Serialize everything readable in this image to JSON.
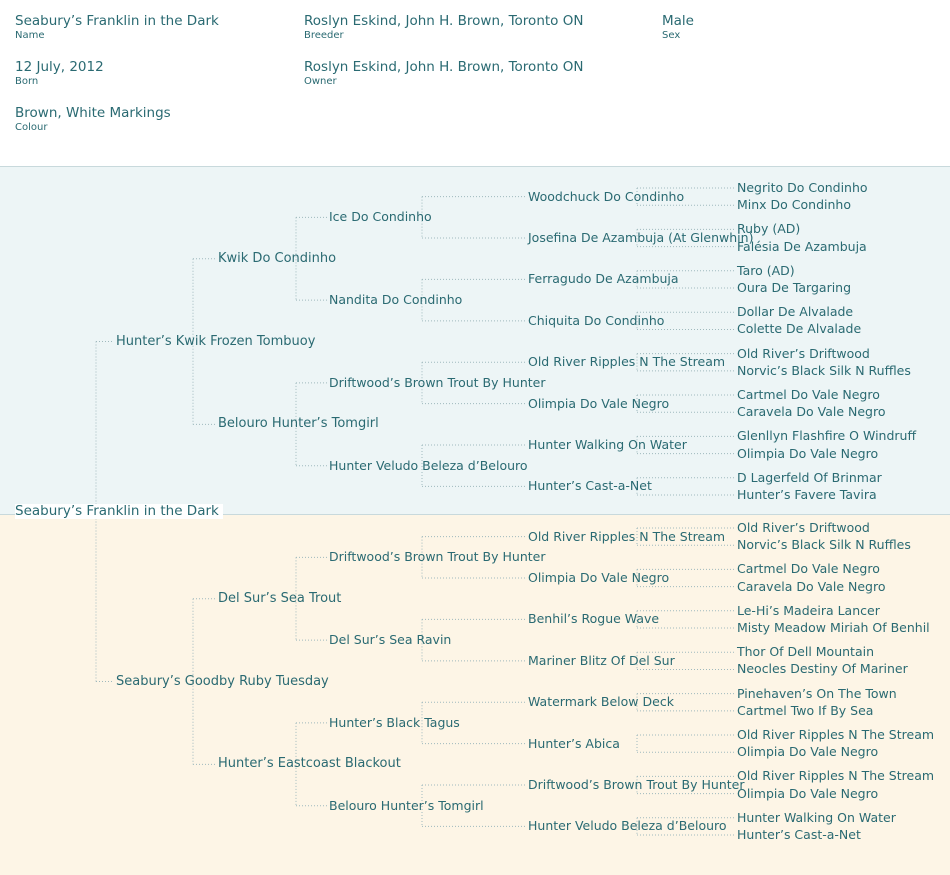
{
  "details": {
    "name": {
      "value": "Seabury’s Franklin in the Dark",
      "label": "Name"
    },
    "breeder": {
      "value": "Roslyn Eskind, John H. Brown, Toronto ON",
      "label": "Breeder"
    },
    "sex": {
      "value": "Male",
      "label": "Sex"
    },
    "born": {
      "value": "12 July, 2012",
      "label": "Born"
    },
    "owner": {
      "value": "Roslyn Eskind, John H. Brown, Toronto ON",
      "label": "Owner"
    },
    "colour": {
      "value": "Brown, White Markings",
      "label": "Colour"
    }
  },
  "colors": {
    "text": "#2a6a72",
    "sire_background": "#edf5f6",
    "dam_background": "#fdf5e6",
    "connector": "#9fb9bd"
  },
  "pedigree": {
    "subject": "Seabury’s Franklin in the Dark",
    "gen1": [
      "Hunter’s Kwik Frozen Tombuoy",
      "Seabury’s Goodby Ruby Tuesday"
    ],
    "gen2": [
      "Kwik Do Condinho",
      "Belouro Hunter’s Tomgirl",
      "Del Sur’s Sea Trout",
      "Hunter’s Eastcoast Blackout"
    ],
    "gen3": [
      "Ice Do Condinho",
      "Nandita Do Condinho",
      "Driftwood’s Brown Trout By Hunter",
      "Hunter Veludo Beleza d’Belouro",
      "Driftwood’s Brown Trout By Hunter",
      "Del Sur’s Sea Ravin",
      "Hunter’s Black Tagus",
      "Belouro Hunter’s Tomgirl"
    ],
    "gen4": [
      "Woodchuck Do Condinho",
      "Josefina De Azambuja (At Glenwhin)",
      "Ferragudo De Azambuja",
      "Chiquita Do Condinho",
      "Old River Ripples N The Stream",
      "Olimpia Do Vale Negro",
      "Hunter Walking On Water",
      "Hunter’s Cast-a-Net",
      "Old River Ripples N The Stream",
      "Olimpia Do Vale Negro",
      "Benhil’s Rogue Wave",
      "Mariner Blitz Of Del Sur",
      "Watermark Below Deck",
      "Hunter’s Abica",
      "Driftwood’s Brown Trout By Hunter",
      "Hunter Veludo Beleza d’Belouro"
    ],
    "gen5": [
      "Negrito Do Condinho",
      "Minx Do Condinho",
      "Ruby (AD)",
      "Falésia De Azambuja",
      "Taro (AD)",
      "Oura De Targaring",
      "Dollar De Alvalade",
      "Colette De Alvalade",
      "Old River’s Driftwood",
      "Norvic’s Black Silk N Ruffles",
      "Cartmel Do Vale Negro",
      "Caravela Do Vale Negro",
      "Glenllyn Flashfire O Windruff",
      "Olimpia Do Vale Negro",
      "D Lagerfeld Of Brinmar",
      "Hunter’s Favere Tavira",
      "Old River’s Driftwood",
      "Norvic’s Black Silk N Ruffles",
      "Cartmel Do Vale Negro",
      "Caravela Do Vale Negro",
      "Le-Hi’s Madeira Lancer",
      "Misty Meadow Miriah Of Benhil",
      "Thor Of Dell Mountain",
      "Neocles Destiny Of Mariner",
      "Pinehaven’s On The Town",
      "Cartmel Two If By Sea",
      "Old River Ripples N The Stream",
      "Olimpia Do Vale Negro",
      "Old River Ripples N The Stream",
      "Olimpia Do Vale Negro",
      "Hunter Walking On Water",
      "Hunter’s Cast-a-Net"
    ]
  }
}
